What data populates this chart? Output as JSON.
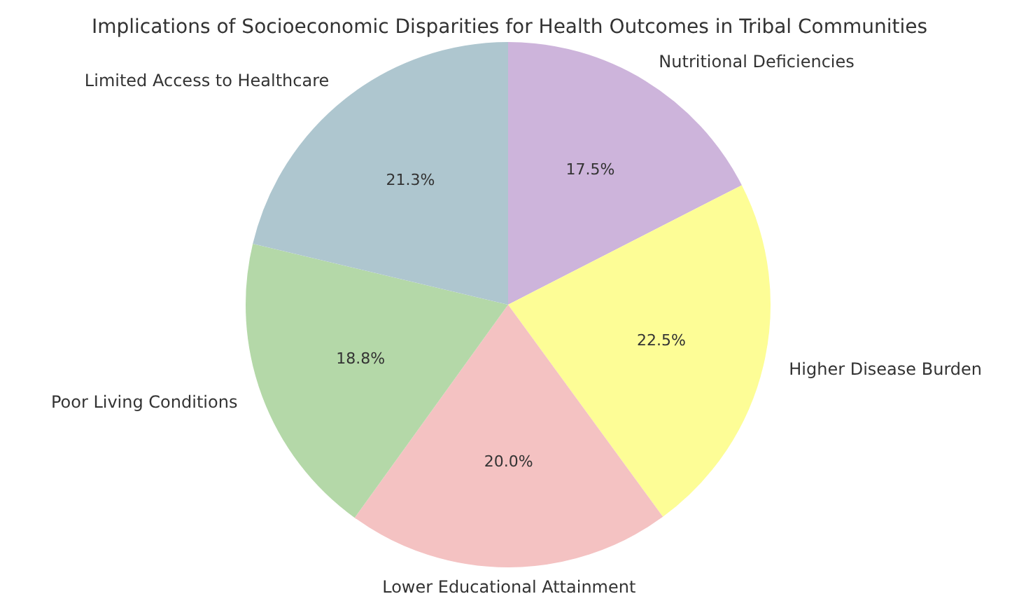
{
  "chart_data": {
    "type": "pie",
    "title": "Implications of Socioeconomic Disparities for Health Outcomes in Tribal Communities",
    "categories": [
      "Nutritional Deficiencies",
      "Higher Disease Burden",
      "Lower Educational Attainment",
      "Poor Living Conditions",
      "Limited Access to Healthcare"
    ],
    "values": [
      17.5,
      22.5,
      20.0,
      18.8,
      21.3
    ],
    "colors": [
      "#cdb4db",
      "#fdfd96",
      "#f4c2c2",
      "#b4d8a8",
      "#aec6cf"
    ],
    "value_labels": [
      "17.5%",
      "22.5%",
      "20.0%",
      "18.8%",
      "21.3%"
    ],
    "legend": false
  }
}
